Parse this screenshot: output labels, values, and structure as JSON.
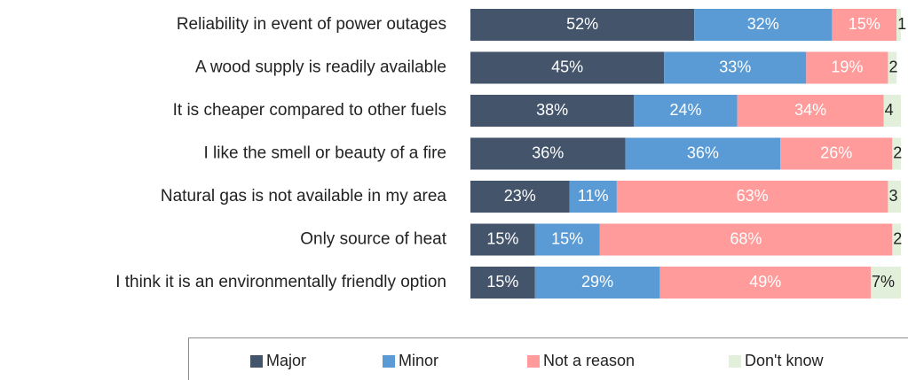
{
  "chart_data": {
    "type": "stacked-bar-horizontal",
    "categories": [
      "Reliability in event of power outages",
      "A wood supply is readily available",
      "It is cheaper compared to other fuels",
      "I like the smell or beauty of a fire",
      "Natural gas is not available in my area",
      "Only source of heat",
      "I think it is an environmentally friendly option"
    ],
    "xlim": [
      0,
      100
    ],
    "legend": "bottom",
    "series": [
      {
        "name": "Major",
        "color": "#44546a",
        "values": [
          52,
          45,
          38,
          36,
          23,
          15,
          15
        ],
        "value_labels": [
          "52%",
          "45%",
          "38%",
          "36%",
          "23%",
          "15%",
          "15%"
        ]
      },
      {
        "name": "Minor",
        "color": "#5b9bd5",
        "values": [
          32,
          33,
          24,
          36,
          11,
          15,
          29
        ],
        "value_labels": [
          "32%",
          "33%",
          "24%",
          "36%",
          "11%",
          "15%",
          "29%"
        ]
      },
      {
        "name": "Not a reason",
        "color": "#ff9b9b",
        "values": [
          15,
          19,
          34,
          26,
          63,
          68,
          49
        ],
        "value_labels": [
          "15%",
          "19%",
          "34%",
          "26%",
          "63%",
          "68%",
          "49%"
        ]
      },
      {
        "name": "Don't know",
        "color": "#e2efda",
        "values": [
          1,
          2,
          4,
          2,
          3,
          2,
          7
        ],
        "value_labels": [
          "1",
          "2",
          "4",
          "2",
          "3",
          "2",
          "7%"
        ]
      }
    ]
  }
}
